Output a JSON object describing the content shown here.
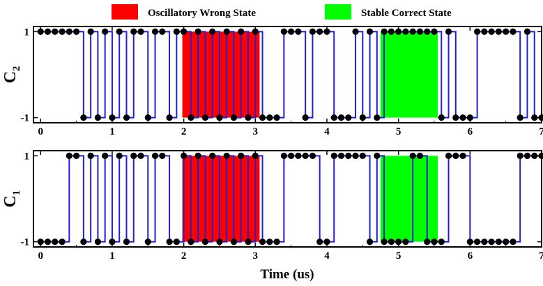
{
  "legend": {
    "wrong_label": "Oscillatory Wrong State",
    "wrong_color": "#ff0000",
    "correct_label": "Stable Correct State",
    "correct_color": "#00ff00"
  },
  "colors": {
    "signal": "#1f1fd6",
    "marker": "#000000",
    "frame": "#000000"
  },
  "xaxis_label": "Time (us)",
  "chart_data": [
    {
      "type": "line",
      "step": "post",
      "ylabel": "C",
      "ylabel_sub": "2",
      "xlim": [
        -0.1,
        7.0
      ],
      "ylim": [
        -1.12,
        1.12
      ],
      "xticks": [
        0,
        1,
        2,
        3,
        4,
        5,
        6,
        7
      ],
      "xtick_labels": [
        "0",
        "1",
        "2",
        "3",
        "4",
        "5",
        "6",
        "7"
      ],
      "yticks": [
        1,
        -1
      ],
      "ytick_labels": [
        "1",
        "-1"
      ],
      "regions": [
        {
          "state": "Oscillatory Wrong State",
          "x": [
            1.98,
            3.06
          ]
        },
        {
          "state": "Stable Correct State",
          "x": [
            4.75,
            5.55
          ]
        }
      ],
      "series": [
        {
          "x": [
            0.0,
            0.1,
            0.2,
            0.3,
            0.4,
            0.5,
            0.6,
            0.7,
            0.8,
            0.9,
            1.0,
            1.1,
            1.2,
            1.3,
            1.4,
            1.5,
            1.6,
            1.7,
            1.8,
            1.9,
            2.0,
            2.1,
            2.2,
            2.3,
            2.4,
            2.5,
            2.6,
            2.7,
            2.8,
            2.9,
            3.0,
            3.1,
            3.2,
            3.3,
            3.4,
            3.5,
            3.6,
            3.7,
            3.8,
            3.9,
            4.0,
            4.1,
            4.2,
            4.3,
            4.4,
            4.5,
            4.6,
            4.7,
            4.8,
            4.9,
            5.0,
            5.1,
            5.2,
            5.3,
            5.4,
            5.5,
            5.6,
            5.7,
            5.8,
            5.9,
            6.0,
            6.1,
            6.2,
            6.3,
            6.4,
            6.5,
            6.6,
            6.7,
            6.8,
            6.9,
            7.0
          ],
          "y": [
            1,
            1,
            1,
            1,
            1,
            1,
            -1,
            1,
            -1,
            1,
            -1,
            1,
            -1,
            1,
            1,
            -1,
            1,
            1,
            -1,
            1,
            1,
            -1,
            1,
            -1,
            1,
            -1,
            1,
            -1,
            1,
            -1,
            1,
            -1,
            -1,
            -1,
            1,
            1,
            1,
            -1,
            1,
            1,
            1,
            -1,
            -1,
            -1,
            1,
            -1,
            1,
            -1,
            1,
            1,
            1,
            1,
            1,
            1,
            1,
            1,
            -1,
            1,
            -1,
            -1,
            -1,
            1,
            1,
            1,
            1,
            1,
            1,
            -1,
            1,
            -1,
            -1
          ]
        }
      ]
    },
    {
      "type": "line",
      "step": "post",
      "ylabel": "C",
      "ylabel_sub": "1",
      "xlim": [
        -0.1,
        7.0
      ],
      "ylim": [
        -1.12,
        1.12
      ],
      "xticks": [
        0,
        1,
        2,
        3,
        4,
        5,
        6,
        7
      ],
      "xtick_labels": [
        "0",
        "1",
        "2",
        "3",
        "4",
        "5",
        "6",
        "7"
      ],
      "yticks": [
        1,
        -1
      ],
      "ytick_labels": [
        "1",
        "-1"
      ],
      "regions": [
        {
          "state": "Oscillatory Wrong State",
          "x": [
            1.98,
            3.06
          ]
        },
        {
          "state": "Stable Correct State",
          "x": [
            4.75,
            5.55
          ]
        }
      ],
      "series": [
        {
          "x": [
            0.0,
            0.1,
            0.2,
            0.3,
            0.4,
            0.5,
            0.6,
            0.7,
            0.8,
            0.9,
            1.0,
            1.1,
            1.2,
            1.3,
            1.4,
            1.5,
            1.6,
            1.7,
            1.8,
            1.9,
            2.0,
            2.1,
            2.2,
            2.3,
            2.4,
            2.5,
            2.6,
            2.7,
            2.8,
            2.9,
            3.0,
            3.1,
            3.2,
            3.3,
            3.4,
            3.5,
            3.6,
            3.7,
            3.8,
            3.9,
            4.0,
            4.1,
            4.2,
            4.3,
            4.4,
            4.5,
            4.6,
            4.7,
            4.8,
            4.9,
            5.0,
            5.1,
            5.2,
            5.3,
            5.4,
            5.5,
            5.6,
            5.7,
            5.8,
            5.9,
            6.0,
            6.1,
            6.2,
            6.3,
            6.4,
            6.5,
            6.6,
            6.7,
            6.8,
            6.9,
            7.0
          ],
          "y": [
            -1,
            -1,
            -1,
            -1,
            1,
            1,
            -1,
            1,
            -1,
            1,
            -1,
            1,
            -1,
            1,
            1,
            -1,
            1,
            1,
            -1,
            -1,
            1,
            -1,
            1,
            -1,
            1,
            -1,
            1,
            -1,
            1,
            -1,
            1,
            -1,
            -1,
            -1,
            1,
            1,
            1,
            1,
            1,
            -1,
            -1,
            1,
            1,
            1,
            1,
            1,
            -1,
            1,
            -1,
            -1,
            -1,
            -1,
            1,
            1,
            -1,
            -1,
            -1,
            1,
            1,
            1,
            -1,
            -1,
            -1,
            -1,
            -1,
            -1,
            -1,
            1,
            1,
            1,
            1
          ]
        }
      ]
    }
  ]
}
